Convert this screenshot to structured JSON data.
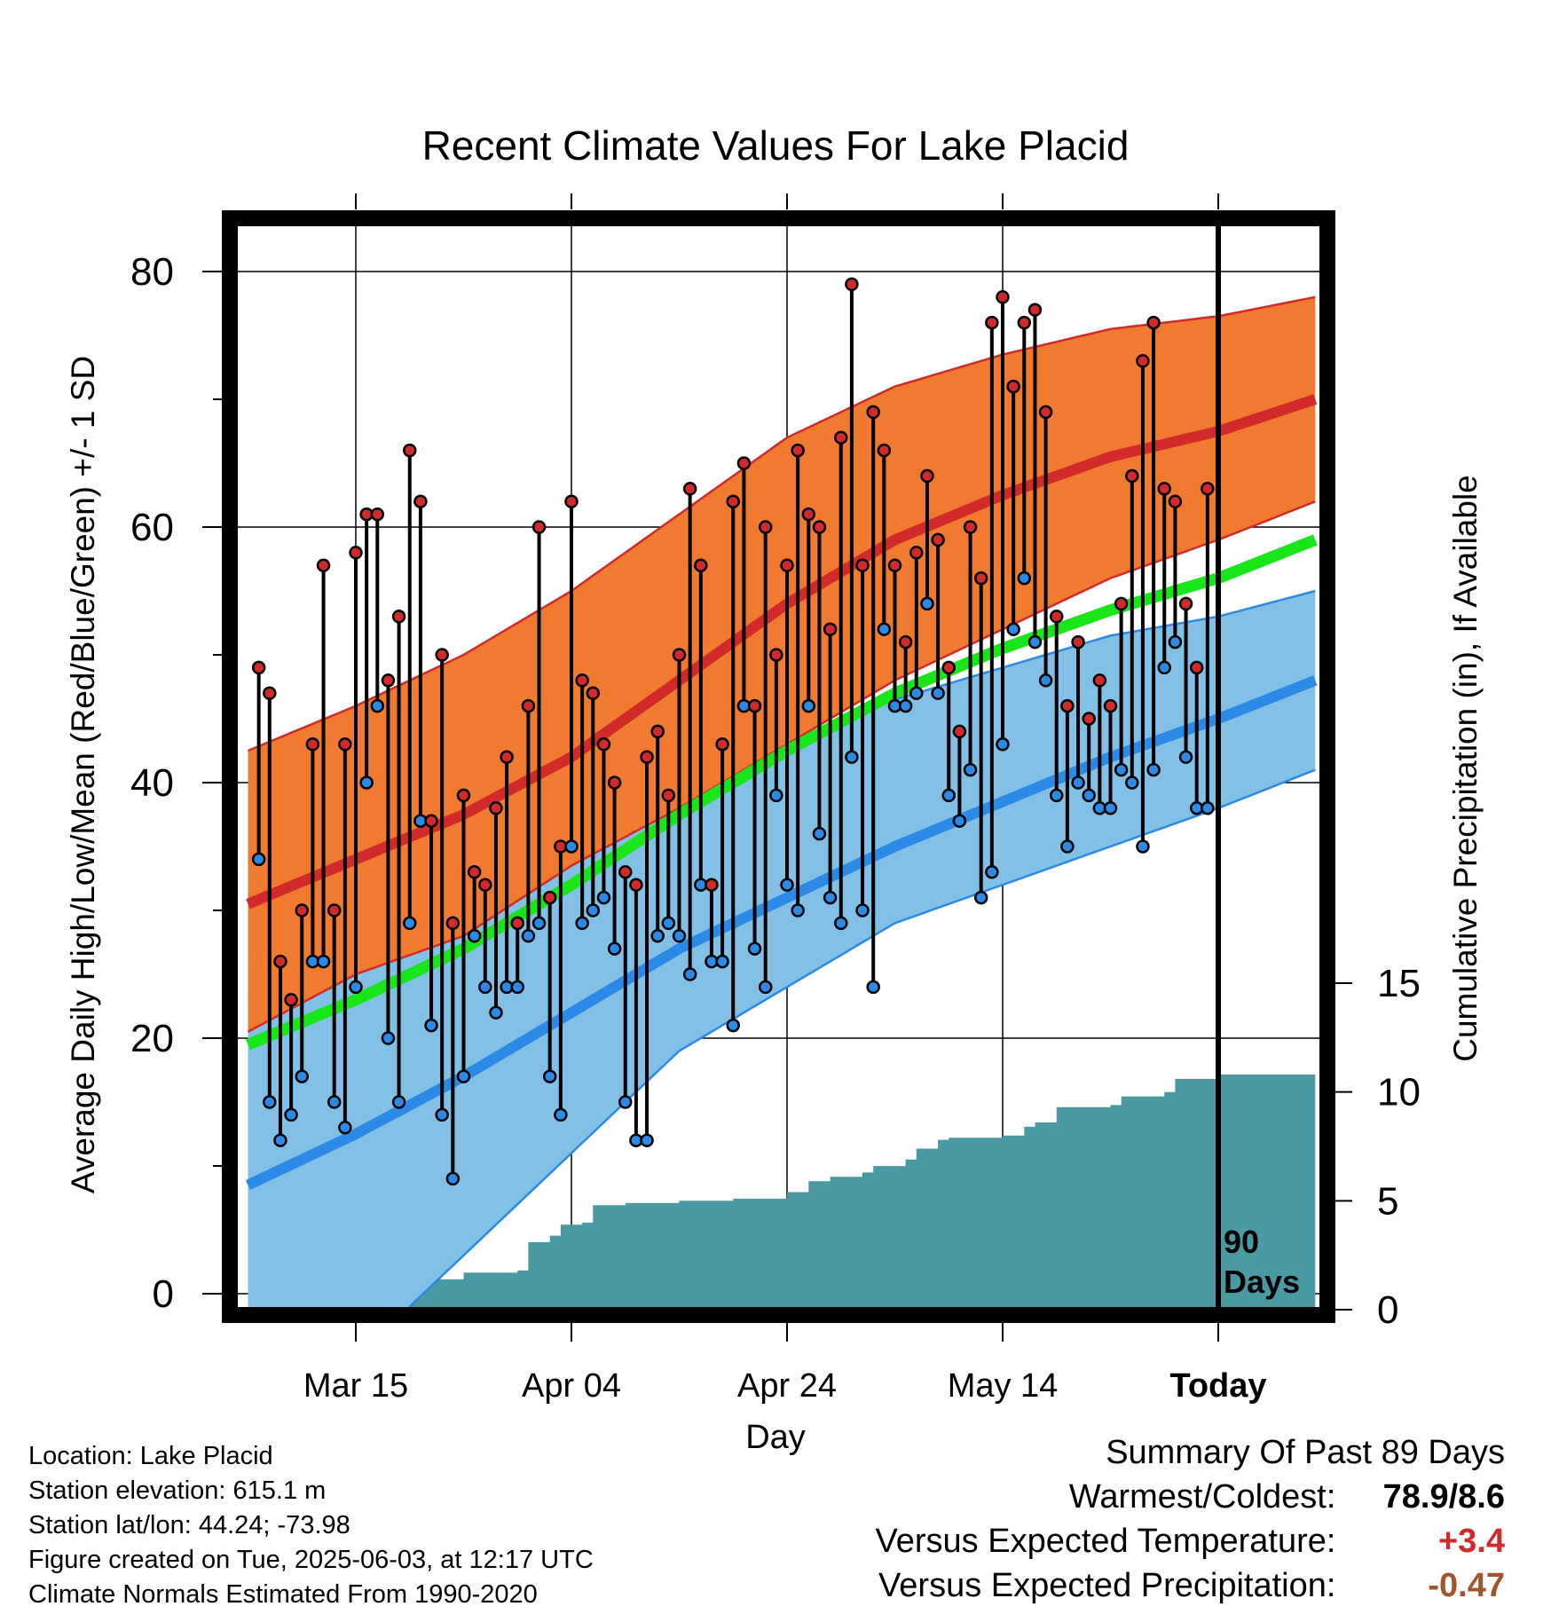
{
  "chart_data": {
    "type": "line",
    "title": "Recent Climate Values For Lake Placid",
    "xlabel": "Day",
    "ylabel": "Average Daily High/Low/Mean (Red/Blue/Green) +/- 1 SD",
    "y2label": "Cumulative Precipitation (in), If Available",
    "ylim": [
      0,
      85
    ],
    "y2lim": [
      0,
      17
    ],
    "x_range_days": [
      -90,
      9
    ],
    "x_ticks": [
      {
        "day": -80,
        "label": "Mar 15"
      },
      {
        "day": -60,
        "label": "Apr 04"
      },
      {
        "day": -40,
        "label": "Apr 24"
      },
      {
        "day": -20,
        "label": "May 14"
      },
      {
        "day": 0,
        "label": "Today"
      }
    ],
    "y_ticks": [
      0,
      20,
      40,
      60,
      80
    ],
    "y2_ticks": [
      0,
      5,
      10,
      15
    ],
    "today_marker_label": "90\nDays",
    "normals": {
      "days": [
        -90,
        -80,
        -70,
        -60,
        -50,
        -40,
        -30,
        -20,
        -10,
        0,
        9
      ],
      "high_mean": [
        30.5,
        34,
        37.5,
        42,
        48,
        54,
        59,
        62.5,
        65.5,
        67.5,
        70
      ],
      "high_sd_upper": [
        42.5,
        46,
        50,
        55,
        61,
        67,
        71,
        73.5,
        75.5,
        76.5,
        78
      ],
      "high_sd_lower": [
        20.5,
        25,
        28,
        33.5,
        38,
        43,
        48,
        52,
        56,
        59,
        62
      ],
      "low_mean": [
        8.5,
        12.5,
        17,
        22,
        27,
        31,
        35,
        38.5,
        42,
        45,
        48
      ],
      "low_sd_upper": [
        23,
        26,
        30,
        34.5,
        39,
        43,
        46.5,
        49,
        51.5,
        53,
        55
      ],
      "low_sd_lower": [
        -10,
        -5,
        3,
        11,
        19,
        24,
        29,
        32,
        35,
        38,
        41
      ],
      "mean_mean": [
        19.5,
        23,
        27,
        32,
        37.5,
        42.5,
        47,
        50.5,
        53.5,
        56,
        59
      ]
    },
    "daily": {
      "start_day": -89,
      "highs": [
        49,
        47,
        26,
        23,
        30,
        43,
        57,
        30,
        43,
        58,
        61,
        61,
        48,
        53,
        66,
        62,
        37,
        50,
        29,
        39,
        33,
        32,
        38,
        42,
        29,
        46,
        60,
        31,
        35,
        62,
        48,
        47,
        43,
        40,
        33,
        32,
        42,
        44,
        39,
        50,
        63,
        57,
        32,
        43,
        62,
        65,
        46,
        60,
        50,
        57,
        66,
        61,
        60,
        52,
        67,
        79,
        57,
        69,
        66,
        57,
        51,
        58,
        64,
        59,
        49,
        44,
        60,
        56,
        76,
        78,
        71,
        76,
        77,
        69,
        53,
        46,
        51,
        45,
        48,
        46,
        54,
        64,
        73,
        76,
        63,
        62,
        54,
        49,
        63
      ],
      "lows": [
        34,
        15,
        12,
        14,
        17,
        26,
        26,
        15,
        13,
        24,
        40,
        46,
        20,
        15,
        29,
        37,
        21,
        14,
        9,
        17,
        28,
        24,
        22,
        24,
        24,
        28,
        29,
        17,
        14,
        35,
        29,
        30,
        31,
        27,
        15,
        12,
        12,
        28,
        29,
        28,
        25,
        32,
        26,
        26,
        21,
        46,
        27,
        24,
        39,
        32,
        30,
        46,
        36,
        31,
        29,
        42,
        30,
        24,
        52,
        46,
        46,
        47,
        54,
        47,
        39,
        37,
        41,
        31,
        33,
        43,
        52,
        56,
        51,
        48,
        39,
        35,
        40,
        39,
        38,
        38,
        41,
        40,
        35,
        41,
        49,
        51,
        42,
        38,
        38
      ]
    },
    "precip": {
      "days": [
        -90,
        -82,
        -81,
        -80,
        -79,
        -75,
        -70,
        -65,
        -64,
        -62,
        -61,
        -59,
        -58,
        -55,
        -50,
        -45,
        -40,
        -38,
        -36,
        -33,
        -32,
        -29,
        -28,
        -26,
        -25,
        -20,
        -18,
        -17,
        -15,
        -10,
        -9,
        -5,
        -4,
        0,
        9
      ],
      "values": [
        0,
        0.1,
        0.2,
        0.4,
        1.3,
        1.4,
        1.7,
        1.8,
        3.1,
        3.4,
        3.9,
        4.0,
        4.8,
        4.9,
        5.0,
        5.1,
        5.4,
        5.9,
        6.1,
        6.3,
        6.6,
        6.9,
        7.4,
        7.8,
        7.9,
        8.0,
        8.4,
        8.6,
        9.3,
        9.4,
        9.8,
        10.0,
        10.6,
        10.8,
        10.8
      ]
    },
    "grid": true
  },
  "footer": {
    "location": "Location: Lake Placid",
    "elevation": "Station elevation: 615.1 m",
    "latlon": "Station lat/lon: 44.24; -73.98",
    "created": "Figure created on Tue, 2025-06-03, at 12:17 UTC",
    "normals": "Climate Normals Estimated From 1990-2020"
  },
  "summary": {
    "title": "Summary Of Past 89 Days",
    "warm_cold_label": "Warmest/Coldest:",
    "warm_cold_value": "78.9/8.6",
    "temp_label": "Versus Expected Temperature:",
    "temp_value": "+3.4",
    "precip_label": "Versus Expected Precipitation:",
    "precip_value": "-0.47"
  },
  "colors": {
    "high_band": "#f07a30",
    "high_line": "#d22a2a",
    "low_band": "#82c0e6",
    "low_line": "#2a8ae6",
    "mean_line": "#18e618",
    "precip_fill": "#4a9aa4",
    "high_dot": "#d22a2a",
    "low_dot": "#2a8ae6",
    "temp_value": "#d22a2a",
    "precip_value": "#a0562a"
  }
}
